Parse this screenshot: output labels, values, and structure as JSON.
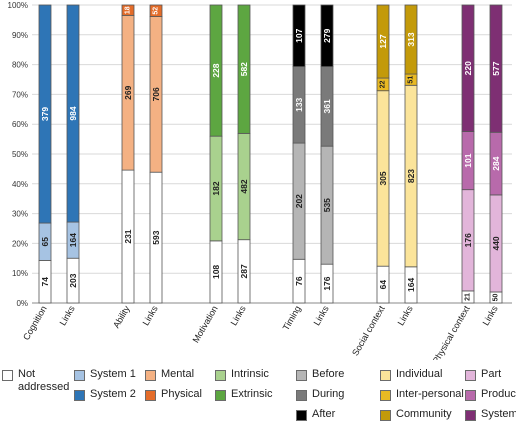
{
  "chart_data": {
    "type": "bar",
    "stacked": "percent",
    "ylim": [
      0,
      100
    ],
    "yticks": [
      "0%",
      "10%",
      "20%",
      "30%",
      "40%",
      "50%",
      "60%",
      "70%",
      "80%",
      "90%",
      "100%"
    ],
    "grid": true,
    "legend_position": "bottom",
    "groups": [
      {
        "bars": [
          {
            "label": "Cognition",
            "segments": [
              {
                "category": "Not addressed",
                "value": 74,
                "color": "#ffffff"
              },
              {
                "category": "System 1",
                "value": 65,
                "color": "#a6c3e3"
              },
              {
                "category": "System 2",
                "value": 379,
                "color": "#2e75b6"
              }
            ]
          },
          {
            "label": "Links",
            "segments": [
              {
                "category": "Not addressed",
                "value": 203,
                "color": "#ffffff"
              },
              {
                "category": "System 1",
                "value": 164,
                "color": "#a6c3e3"
              },
              {
                "category": "System 2",
                "value": 984,
                "color": "#2e75b6"
              }
            ]
          }
        ]
      },
      {
        "bars": [
          {
            "label": "Ability",
            "segments": [
              {
                "category": "Not addressed",
                "value": 231,
                "color": "#ffffff"
              },
              {
                "category": "Mental",
                "value": 269,
                "color": "#f4b183"
              },
              {
                "category": "Physical",
                "value": 18,
                "color": "#e46c29"
              }
            ]
          },
          {
            "label": "Links",
            "segments": [
              {
                "category": "Not addressed",
                "value": 593,
                "color": "#ffffff"
              },
              {
                "category": "Mental",
                "value": 706,
                "color": "#f4b183"
              },
              {
                "category": "Physical",
                "value": 52,
                "color": "#e46c29"
              }
            ]
          }
        ]
      },
      {
        "bars": [
          {
            "label": "Motivation",
            "segments": [
              {
                "category": "Not addressed",
                "value": 108,
                "color": "#ffffff"
              },
              {
                "category": "Intrinsic",
                "value": 182,
                "color": "#a9d18e"
              },
              {
                "category": "Extrinsic",
                "value": 228,
                "color": "#5da641"
              }
            ]
          },
          {
            "label": "Links",
            "segments": [
              {
                "category": "Not addressed",
                "value": 287,
                "color": "#ffffff"
              },
              {
                "category": "Intrinsic",
                "value": 482,
                "color": "#a9d18e"
              },
              {
                "category": "Extrinsic",
                "value": 582,
                "color": "#5da641"
              }
            ]
          }
        ]
      },
      {
        "bars": [
          {
            "label": "Timing",
            "segments": [
              {
                "category": "Not addressed",
                "value": 76,
                "color": "#ffffff"
              },
              {
                "category": "Before",
                "value": 202,
                "color": "#b5b5b5"
              },
              {
                "category": "During",
                "value": 133,
                "color": "#7a7a7a"
              },
              {
                "category": "After",
                "value": 107,
                "color": "#000000"
              }
            ]
          },
          {
            "label": "Links",
            "segments": [
              {
                "category": "Not addressed",
                "value": 176,
                "color": "#ffffff"
              },
              {
                "category": "Before",
                "value": 535,
                "color": "#b5b5b5"
              },
              {
                "category": "During",
                "value": 361,
                "color": "#7a7a7a"
              },
              {
                "category": "After",
                "value": 279,
                "color": "#000000"
              }
            ]
          }
        ]
      },
      {
        "bars": [
          {
            "label": "Social context",
            "segments": [
              {
                "category": "Not addressed",
                "value": 64,
                "color": "#ffffff"
              },
              {
                "category": "Individual",
                "value": 305,
                "color": "#fbe49a"
              },
              {
                "category": "Inter-personal",
                "value": 22,
                "color": "#e8b923"
              },
              {
                "category": "Community",
                "value": 127,
                "color": "#c39a0a"
              }
            ]
          },
          {
            "label": "Links",
            "segments": [
              {
                "category": "Not addressed",
                "value": 164,
                "color": "#ffffff"
              },
              {
                "category": "Individual",
                "value": 823,
                "color": "#fbe49a"
              },
              {
                "category": "Inter-personal",
                "value": 51,
                "color": "#e8b923"
              },
              {
                "category": "Community",
                "value": 313,
                "color": "#c39a0a"
              }
            ]
          }
        ]
      },
      {
        "bars": [
          {
            "label": "Physical context",
            "segments": [
              {
                "category": "Not addressed",
                "value": 21,
                "color": "#ffffff"
              },
              {
                "category": "Part",
                "value": 176,
                "color": "#e2b5da"
              },
              {
                "category": "Product",
                "value": 101,
                "color": "#b86aab"
              },
              {
                "category": "System",
                "value": 220,
                "color": "#7e2f73"
              }
            ]
          },
          {
            "label": "Links",
            "segments": [
              {
                "category": "Not addressed",
                "value": 50,
                "color": "#ffffff"
              },
              {
                "category": "Part",
                "value": 440,
                "color": "#e2b5da"
              },
              {
                "category": "Product",
                "value": 284,
                "color": "#b86aab"
              },
              {
                "category": "System",
                "value": 577,
                "color": "#7e2f73"
              }
            ]
          }
        ]
      }
    ],
    "legend": [
      {
        "label": "Not\naddressed",
        "color": "#ffffff"
      },
      {
        "label": "System 1",
        "color": "#a6c3e3"
      },
      {
        "label": "System 2",
        "color": "#2e75b6"
      },
      {
        "label": "Mental",
        "color": "#f4b183"
      },
      {
        "label": "Physical",
        "color": "#e46c29"
      },
      {
        "label": "Intrinsic",
        "color": "#a9d18e"
      },
      {
        "label": "Extrinsic",
        "color": "#5da641"
      },
      {
        "label": "Before",
        "color": "#b5b5b5"
      },
      {
        "label": "During",
        "color": "#7a7a7a"
      },
      {
        "label": "After",
        "color": "#000000"
      },
      {
        "label": "Individual",
        "color": "#fbe49a"
      },
      {
        "label": "Inter-personal",
        "color": "#e8b923"
      },
      {
        "label": "Community",
        "color": "#c39a0a"
      },
      {
        "label": "Part",
        "color": "#e2b5da"
      },
      {
        "label": "Product",
        "color": "#b86aab"
      },
      {
        "label": "System",
        "color": "#7e2f73"
      }
    ]
  }
}
